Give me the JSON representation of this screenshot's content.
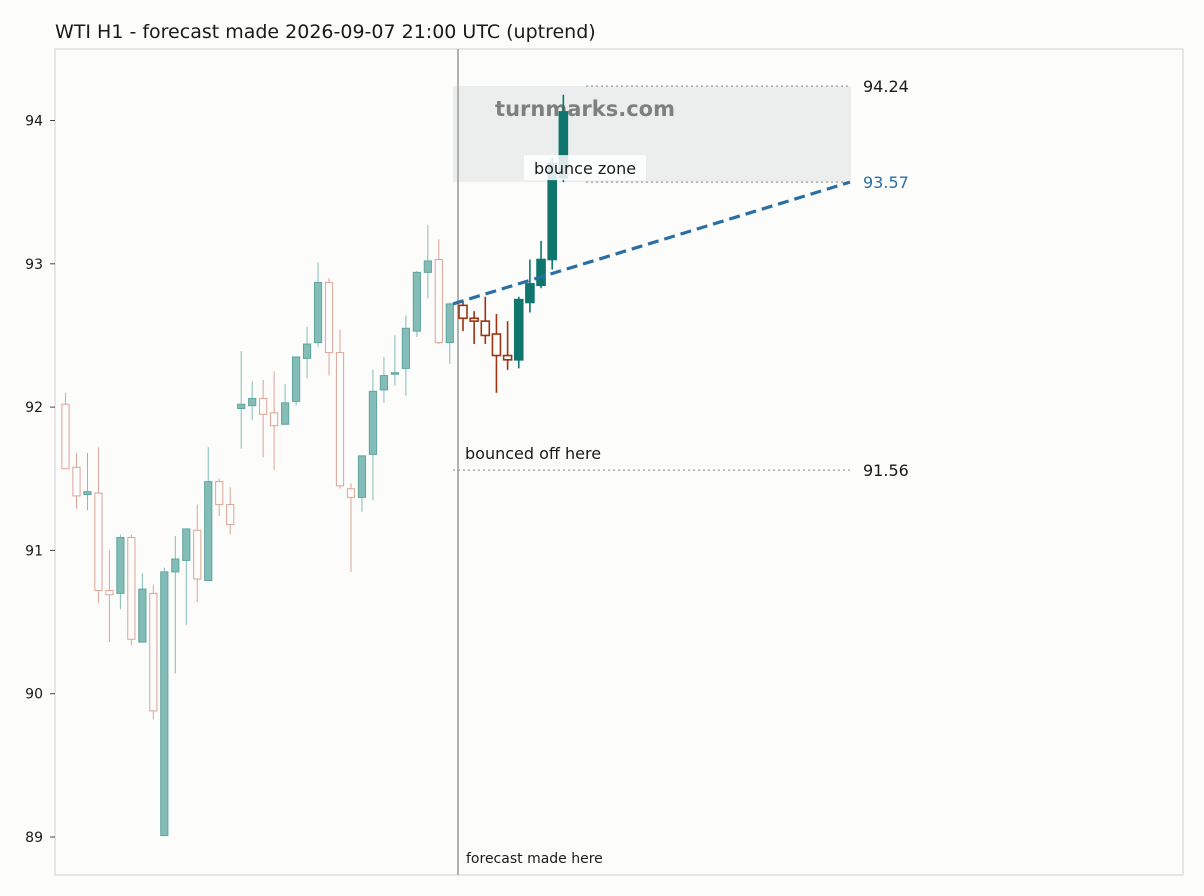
{
  "colors": {
    "background": "#fcfcfa",
    "bull": "#0f766e",
    "bear": "#9a3412",
    "history_bull_fill": "#84bdb7",
    "history_bear_edge": "#dba497",
    "trend": "#2a6fa3",
    "zone": "#e8ebea",
    "watermark": "#7e8080"
  },
  "chart_data": {
    "type": "candlestick",
    "title": "WTI H1 - forecast made 2026-09-07 21:00 UTC (uptrend)",
    "ylim": [
      88.75,
      94.5
    ],
    "yticks": [
      89,
      90,
      91,
      92,
      93,
      94
    ],
    "grid": false,
    "watermark": "turnmarks.com",
    "history": [
      {
        "o": 92.02,
        "h": 92.1,
        "l": 91.57,
        "c": 91.57
      },
      {
        "o": 91.58,
        "h": 91.68,
        "l": 91.29,
        "c": 91.38
      },
      {
        "o": 91.39,
        "h": 91.68,
        "l": 91.28,
        "c": 91.41
      },
      {
        "o": 91.4,
        "h": 91.72,
        "l": 90.63,
        "c": 90.72
      },
      {
        "o": 90.72,
        "h": 91.0,
        "l": 90.36,
        "c": 90.69
      },
      {
        "o": 90.7,
        "h": 91.11,
        "l": 90.59,
        "c": 91.09
      },
      {
        "o": 91.09,
        "h": 91.11,
        "l": 90.34,
        "c": 90.38
      },
      {
        "o": 90.36,
        "h": 90.84,
        "l": 90.36,
        "c": 90.73
      },
      {
        "o": 90.7,
        "h": 90.76,
        "l": 89.82,
        "c": 89.88
      },
      {
        "o": 89.01,
        "h": 90.88,
        "l": 89.01,
        "c": 90.85
      },
      {
        "o": 90.85,
        "h": 91.1,
        "l": 90.14,
        "c": 90.94
      },
      {
        "o": 90.93,
        "h": 91.15,
        "l": 90.48,
        "c": 91.15
      },
      {
        "o": 91.14,
        "h": 91.32,
        "l": 90.64,
        "c": 90.8
      },
      {
        "o": 90.79,
        "h": 91.72,
        "l": 90.79,
        "c": 91.48
      },
      {
        "o": 91.48,
        "h": 91.5,
        "l": 91.24,
        "c": 91.32
      },
      {
        "o": 91.32,
        "h": 91.44,
        "l": 91.11,
        "c": 91.18
      },
      {
        "o": 91.99,
        "h": 92.39,
        "l": 91.71,
        "c": 92.02
      },
      {
        "o": 92.01,
        "h": 92.18,
        "l": 91.91,
        "c": 92.06
      },
      {
        "o": 92.06,
        "h": 92.19,
        "l": 91.65,
        "c": 91.95
      },
      {
        "o": 91.96,
        "h": 92.25,
        "l": 91.56,
        "c": 91.87
      },
      {
        "o": 91.88,
        "h": 92.16,
        "l": 91.88,
        "c": 92.03
      },
      {
        "o": 92.04,
        "h": 92.35,
        "l": 92.01,
        "c": 92.35
      },
      {
        "o": 92.34,
        "h": 92.56,
        "l": 92.2,
        "c": 92.44
      },
      {
        "o": 92.45,
        "h": 93.01,
        "l": 92.42,
        "c": 92.87
      },
      {
        "o": 92.87,
        "h": 92.9,
        "l": 92.22,
        "c": 92.38
      },
      {
        "o": 92.38,
        "h": 92.54,
        "l": 91.43,
        "c": 91.45
      },
      {
        "o": 91.43,
        "h": 91.47,
        "l": 90.85,
        "c": 91.37
      },
      {
        "o": 91.37,
        "h": 91.64,
        "l": 91.27,
        "c": 91.66
      },
      {
        "o": 91.67,
        "h": 92.26,
        "l": 91.35,
        "c": 92.11
      },
      {
        "o": 92.12,
        "h": 92.35,
        "l": 92.03,
        "c": 92.22
      },
      {
        "o": 92.23,
        "h": 92.5,
        "l": 92.15,
        "c": 92.24
      },
      {
        "o": 92.27,
        "h": 92.64,
        "l": 92.08,
        "c": 92.55
      },
      {
        "o": 92.53,
        "h": 92.95,
        "l": 92.49,
        "c": 92.94
      },
      {
        "o": 92.94,
        "h": 93.27,
        "l": 92.76,
        "c": 93.02
      },
      {
        "o": 93.03,
        "h": 93.17,
        "l": 92.44,
        "c": 92.45
      },
      {
        "o": 92.45,
        "h": 92.73,
        "l": 92.3,
        "c": 92.72
      }
    ],
    "forecast": [
      {
        "o": 92.71,
        "h": 92.74,
        "l": 92.53,
        "c": 92.62
      },
      {
        "o": 92.62,
        "h": 92.67,
        "l": 92.44,
        "c": 92.6
      },
      {
        "o": 92.6,
        "h": 92.77,
        "l": 92.44,
        "c": 92.5
      },
      {
        "o": 92.51,
        "h": 92.65,
        "l": 92.1,
        "c": 92.36
      },
      {
        "o": 92.36,
        "h": 92.6,
        "l": 92.26,
        "c": 92.33
      },
      {
        "o": 92.33,
        "h": 92.77,
        "l": 92.27,
        "c": 92.75
      },
      {
        "o": 92.73,
        "h": 93.03,
        "l": 92.66,
        "c": 92.86
      },
      {
        "o": 92.85,
        "h": 93.16,
        "l": 92.83,
        "c": 93.03
      },
      {
        "o": 93.03,
        "h": 93.74,
        "l": 92.96,
        "c": 93.7
      },
      {
        "o": 93.6,
        "h": 94.18,
        "l": 93.57,
        "c": 94.06
      }
    ],
    "trend_line": {
      "from": 92.72,
      "to": 93.57
    },
    "zone": {
      "low": 93.57,
      "high": 94.24,
      "label": "bounce zone"
    },
    "levels": [
      {
        "value": 94.24,
        "label": "94.24"
      },
      {
        "value": 93.57,
        "label": "93.57"
      },
      {
        "value": 91.56,
        "label": "91.56"
      }
    ],
    "support_label": "bounced off here",
    "forecast_label": "forecast made here"
  }
}
